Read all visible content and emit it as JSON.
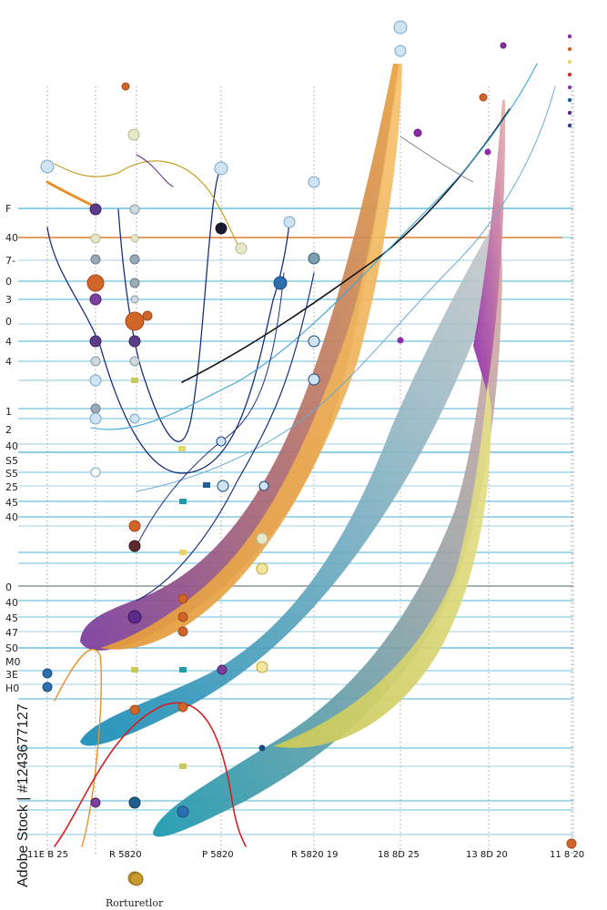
{
  "chart_data": {
    "type": "line",
    "title": "",
    "xlabel": "",
    "ylabel": "",
    "grid": true,
    "legend_placement": "bottom-left",
    "legend": [
      {
        "label": "Rorturetlor",
        "color": "#c99a2e"
      }
    ],
    "x_tick_labels": [
      "11E B 25",
      "R 5820",
      "P 5820",
      "R 5820 19",
      "18 8D 25",
      "13 8D 20",
      "11 8 20"
    ],
    "y_tick_labels": [
      "F",
      "40",
      "7-",
      "0",
      "3",
      "0",
      "4",
      "4",
      "1",
      "2",
      "40",
      "S5",
      "S5",
      "25",
      "45",
      "40",
      "0",
      "40",
      "45",
      "47",
      "S0",
      "M0",
      "3E",
      "H0"
    ],
    "y_tick_colors": [
      "#222222",
      "#222222",
      "#222222",
      "#222222",
      "#222222",
      "#222222",
      "#222222",
      "#222222",
      "#222222",
      "#222222",
      "#222222",
      "#222222",
      "#222222",
      "#222222",
      "#222222",
      "#222222",
      "#222222",
      "#666666",
      "#666666",
      "#c0392b",
      "#c0392b",
      "#c0392b",
      "#1f3f8f",
      "#1f3f8f"
    ],
    "bands": [
      {
        "color_start": "#7b3fa0",
        "color_end": "#e8a03a"
      },
      {
        "color_start": "#e39a3c",
        "color_end": "#f5c06a"
      },
      {
        "color_start": "#1a8fb8",
        "color_end": "#c8c8c8"
      },
      {
        "color_start": "#1f9bb0",
        "color_end": "#e7a9a0"
      },
      {
        "color_start": "#8e2aa8",
        "color_end": "#e8b0a8"
      },
      {
        "color_start": "#c9c95a",
        "color_end": "#e6e08a"
      }
    ],
    "series_colors": [
      "#1b2f7a",
      "#151515",
      "#3aa5d8",
      "#6aa9cf",
      "#c2a32b",
      "#d42020",
      "#e7902a"
    ],
    "marker_palette": [
      "#7b3fa0",
      "#d0652a",
      "#2c6fb0",
      "#e6d66a",
      "#9aa9b8",
      "#cfe3f2"
    ]
  },
  "watermark": {
    "side_text": "Adobe Stock | #1243677127"
  }
}
